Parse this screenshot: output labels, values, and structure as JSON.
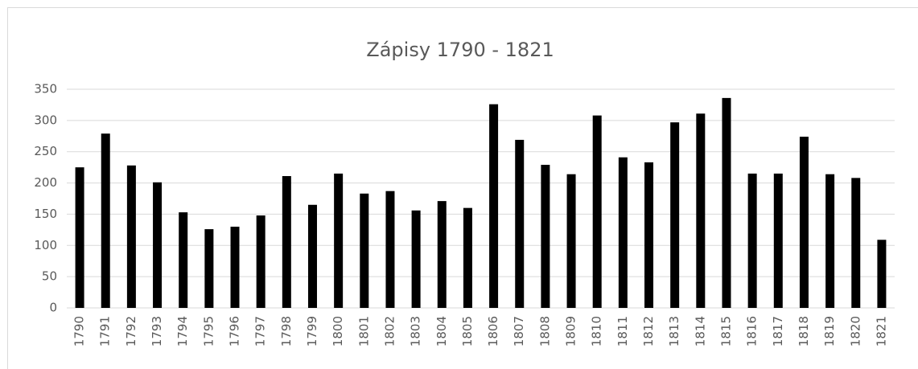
{
  "chart_data": {
    "type": "bar",
    "title": "Zápisy 1790 - 1821",
    "categories": [
      "1790",
      "1791",
      "1792",
      "1793",
      "1794",
      "1795",
      "1796",
      "1797",
      "1798",
      "1799",
      "1800",
      "1801",
      "1802",
      "1803",
      "1804",
      "1805",
      "1806",
      "1807",
      "1808",
      "1809",
      "1810",
      "1811",
      "1812",
      "1813",
      "1814",
      "1815",
      "1816",
      "1817",
      "1818",
      "1819",
      "1820",
      "1821"
    ],
    "values": [
      225,
      279,
      228,
      201,
      153,
      126,
      130,
      148,
      211,
      165,
      215,
      183,
      187,
      156,
      171,
      160,
      326,
      269,
      229,
      214,
      308,
      241,
      233,
      297,
      311,
      336,
      215,
      215,
      274,
      214,
      208,
      109
    ],
    "color": "#000000",
    "ylim": [
      0,
      350
    ],
    "yticks": [
      0,
      50,
      100,
      150,
      200,
      250,
      300,
      350
    ],
    "grid": true
  }
}
